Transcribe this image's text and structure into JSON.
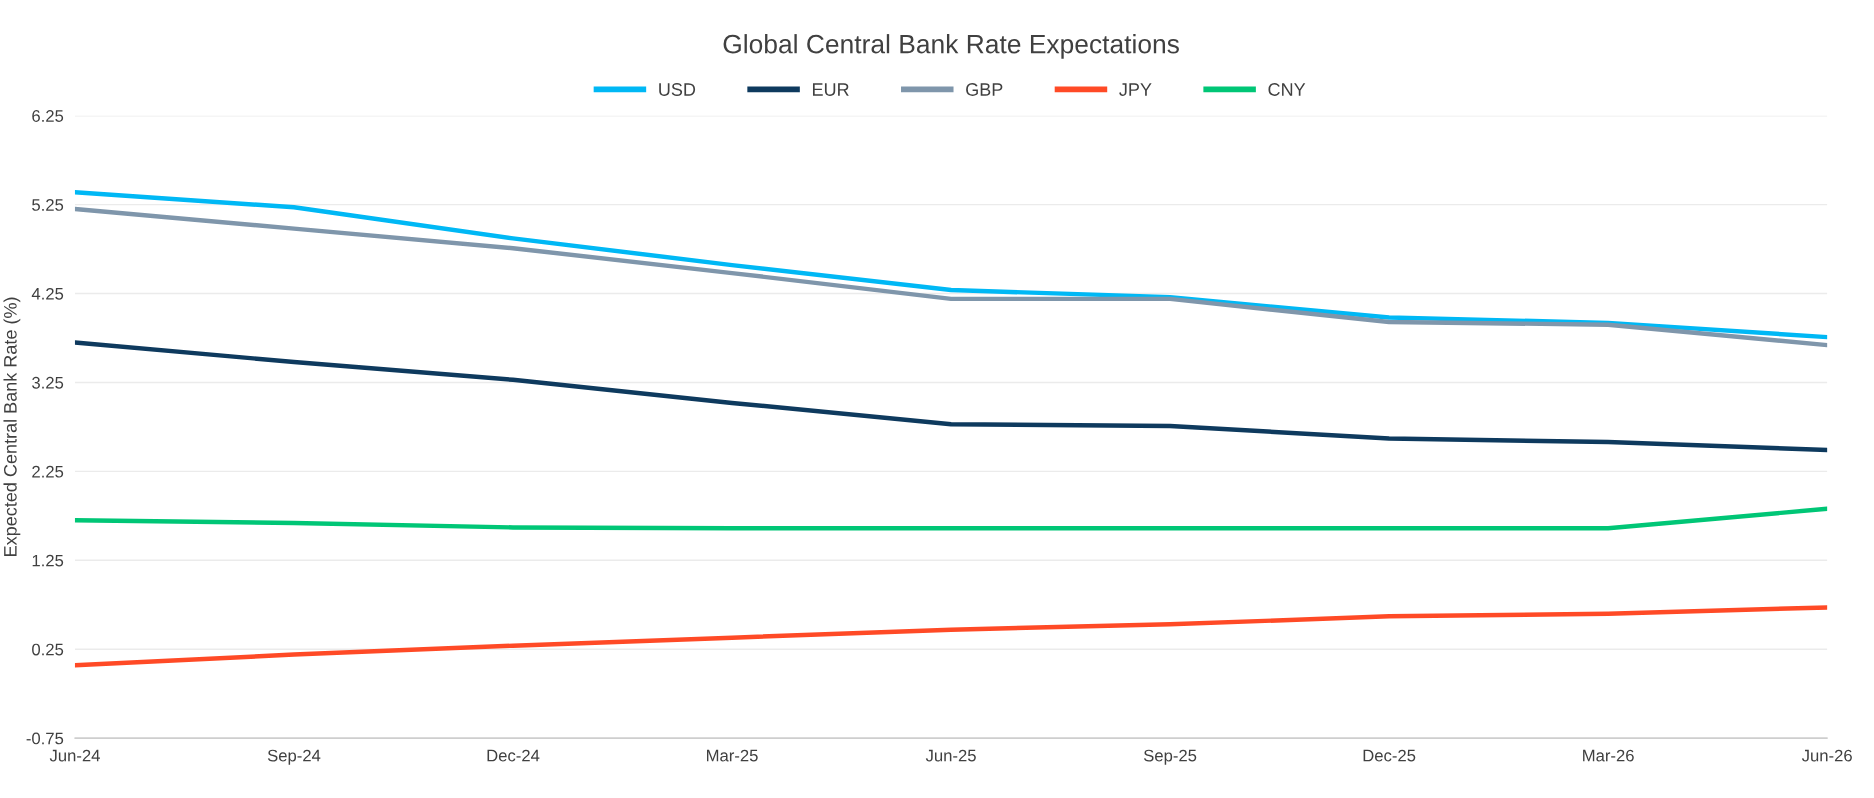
{
  "chart_data": {
    "type": "line",
    "title": "Global Central Bank Rate Expectations",
    "ylabel": "Expected Central Bank Rate (%)",
    "categories": [
      "Jun-24",
      "Sep-24",
      "Dec-24",
      "Mar-25",
      "Jun-25",
      "Sep-25",
      "Dec-25",
      "Mar-26",
      "Jun-26"
    ],
    "series": [
      {
        "name": "USD",
        "color": "#00b8f5",
        "values": [
          5.39,
          5.22,
          4.87,
          4.57,
          4.29,
          4.21,
          3.98,
          3.92,
          3.76
        ]
      },
      {
        "name": "EUR",
        "color": "#0e3a5e",
        "values": [
          3.7,
          3.48,
          3.28,
          3.02,
          2.78,
          2.76,
          2.62,
          2.58,
          2.49
        ]
      },
      {
        "name": "GBP",
        "color": "#7f96ab",
        "values": [
          5.2,
          4.98,
          4.76,
          4.48,
          4.19,
          4.19,
          3.93,
          3.9,
          3.67
        ]
      },
      {
        "name": "JPY",
        "color": "#ff4a26",
        "values": [
          0.07,
          0.19,
          0.29,
          0.38,
          0.47,
          0.53,
          0.62,
          0.65,
          0.72
        ]
      },
      {
        "name": "CNY",
        "color": "#00c676",
        "values": [
          1.7,
          1.67,
          1.62,
          1.61,
          1.61,
          1.61,
          1.61,
          1.61,
          1.83
        ]
      }
    ],
    "ylim": [
      -0.75,
      6.25
    ],
    "yticks": [
      -0.75,
      0.25,
      1.25,
      2.25,
      3.25,
      4.25,
      5.25,
      6.25
    ],
    "grid": "y",
    "legend": "top",
    "marker": "none",
    "line_style": "solid"
  }
}
